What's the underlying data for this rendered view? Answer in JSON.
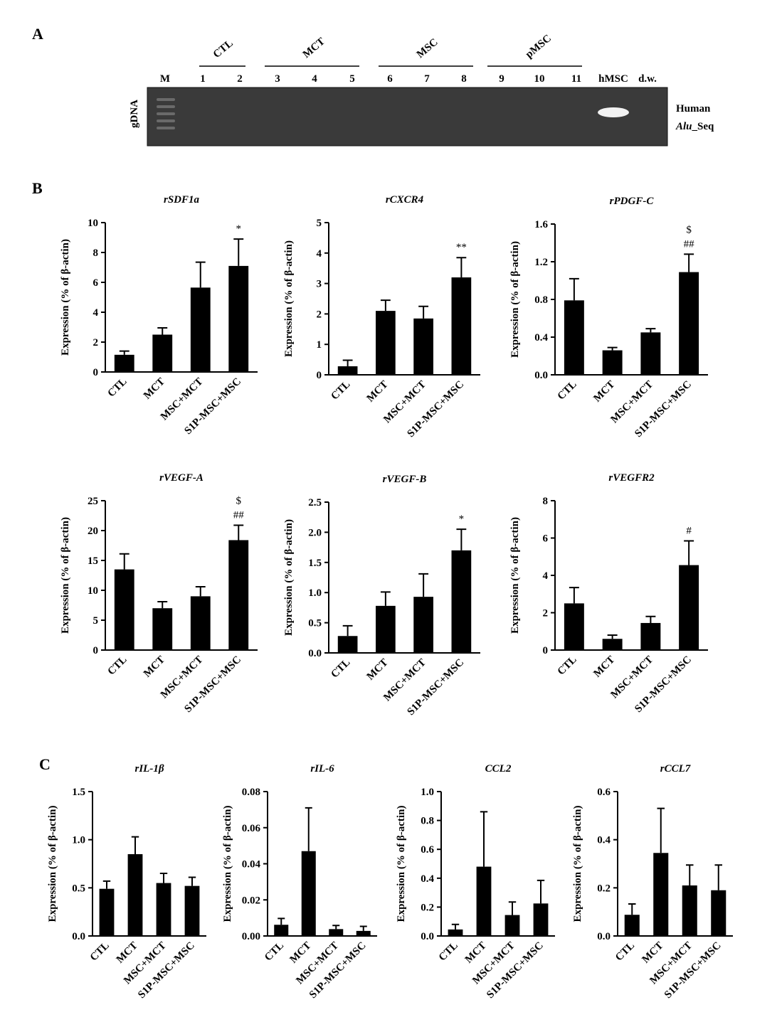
{
  "panel_labels": [
    "A",
    "B",
    "C"
  ],
  "gel": {
    "groups": [
      "CTL",
      "MCT",
      "MSC",
      "pMSC"
    ],
    "lanes": [
      "M",
      "1",
      "2",
      "3",
      "4",
      "5",
      "6",
      "7",
      "8",
      "9",
      "10",
      "11",
      "hMSC",
      "d.w."
    ],
    "row_label": "gDNA",
    "band_label": "Human",
    "band_sublabel_italic": "Alu",
    "band_sublabel_rest": "_Seq"
  },
  "chart_data": [
    {
      "type": "bar",
      "title": "rSDF1a",
      "ylabel": "Expression (% of β-actin)",
      "categories": [
        "CTL",
        "MCT",
        "MSC+MCT",
        "S1P-MSC+MSC"
      ],
      "values": [
        1.15,
        2.5,
        5.65,
        7.1
      ],
      "errors": [
        0.25,
        0.45,
        1.7,
        1.8
      ],
      "annotations": [
        null,
        null,
        null,
        [
          "*"
        ]
      ],
      "color": "#000000",
      "ylim": [
        0,
        10
      ],
      "yticks": [
        0,
        2,
        4,
        6,
        8,
        10
      ]
    },
    {
      "type": "bar",
      "title": "rCXCR4",
      "ylabel": "Expression (% of β-actin)",
      "categories": [
        "CTL",
        "MCT",
        "MSC+MCT",
        "S1P-MSC+MSC"
      ],
      "values": [
        0.28,
        2.1,
        1.85,
        3.2
      ],
      "errors": [
        0.2,
        0.35,
        0.4,
        0.65
      ],
      "annotations": [
        null,
        null,
        null,
        [
          "**"
        ]
      ],
      "color": "#000000",
      "ylim": [
        0,
        5
      ],
      "yticks": [
        0,
        1,
        2,
        3,
        4,
        5
      ]
    },
    {
      "type": "bar",
      "title": "rPDGF-C",
      "ylabel": "Expression (% of β-actin)",
      "categories": [
        "CTL",
        "MCT",
        "MSC+MCT",
        "S1P-MSC+MSC"
      ],
      "values": [
        0.79,
        0.26,
        0.45,
        1.09
      ],
      "errors": [
        0.23,
        0.03,
        0.04,
        0.19
      ],
      "annotations": [
        null,
        null,
        null,
        [
          "$",
          "##"
        ]
      ],
      "color": "#000000",
      "ylim": [
        0,
        1.6
      ],
      "yticks": [
        {
          "value": 0,
          "label": "0.0"
        },
        0.4,
        0.8,
        1.2,
        1.6
      ]
    },
    {
      "type": "bar",
      "title": "rVEGF-A",
      "ylabel": "Expression (% of β-actin)",
      "categories": [
        "CTL",
        "MCT",
        "MSC+MCT",
        "S1P-MSC+MSC"
      ],
      "values": [
        13.5,
        7.0,
        9.0,
        18.4
      ],
      "errors": [
        2.6,
        1.1,
        1.6,
        2.5
      ],
      "annotations": [
        null,
        null,
        null,
        [
          "$",
          "##"
        ]
      ],
      "color": "#000000",
      "ylim": [
        0,
        25
      ],
      "yticks": [
        0,
        5,
        10,
        15,
        20,
        25
      ]
    },
    {
      "type": "bar",
      "title": "rVEGF-B",
      "ylabel": "Expression (% of β-actin)",
      "categories": [
        "CTL",
        "MCT",
        "MSC+MCT",
        "S1P-MSC+MSC"
      ],
      "values": [
        0.28,
        0.78,
        0.93,
        1.7
      ],
      "errors": [
        0.17,
        0.23,
        0.38,
        0.35
      ],
      "annotations": [
        null,
        null,
        null,
        [
          "*"
        ]
      ],
      "color": "#000000",
      "ylim": [
        0,
        2.5
      ],
      "yticks": [
        {
          "value": 0,
          "label": "0.0"
        },
        0.5,
        {
          "value": 1,
          "label": "1.0"
        },
        1.5,
        {
          "value": 2,
          "label": "2.0"
        },
        2.5
      ]
    },
    {
      "type": "bar",
      "title": "rVEGFR2",
      "ylabel": "Expression (% of β-actin)",
      "categories": [
        "CTL",
        "MCT",
        "MSC+MCT",
        "S1P-MSC+MSC"
      ],
      "values": [
        2.5,
        0.6,
        1.45,
        4.55
      ],
      "errors": [
        0.85,
        0.2,
        0.35,
        1.3
      ],
      "annotations": [
        null,
        null,
        null,
        [
          "#"
        ]
      ],
      "color": "#000000",
      "ylim": [
        0,
        8
      ],
      "yticks": [
        0,
        2,
        4,
        6,
        8
      ]
    },
    {
      "type": "bar",
      "title": "rIL-1β",
      "ylabel": "Expression (% of β-actin)",
      "categories": [
        "CTL",
        "MCT",
        "MSC+MCT",
        "S1P-MSC+MSC"
      ],
      "values": [
        0.49,
        0.85,
        0.55,
        0.52
      ],
      "errors": [
        0.08,
        0.18,
        0.1,
        0.09
      ],
      "color": "#000000",
      "ylim": [
        0,
        1.5
      ],
      "yticks": [
        {
          "value": 0,
          "label": "0.0"
        },
        0.5,
        {
          "value": 1,
          "label": "1.0"
        },
        1.5
      ]
    },
    {
      "type": "bar",
      "title": "rIL-6",
      "ylabel": "Expression (% of β-actin)",
      "categories": [
        "CTL",
        "MCT",
        "MSC+MCT",
        "S1P-MSC+MSC"
      ],
      "values": [
        0.0062,
        0.047,
        0.0038,
        0.0028
      ],
      "errors": [
        0.0035,
        0.024,
        0.002,
        0.0025
      ],
      "color": "#000000",
      "ylim": [
        0,
        0.08
      ],
      "yticks": [
        {
          "value": 0,
          "label": "0.00"
        },
        0.02,
        0.04,
        0.06,
        0.08
      ]
    },
    {
      "type": "bar",
      "title": "CCL2",
      "ylabel": "Expression (% of β-actin)",
      "categories": [
        "CTL",
        "MCT",
        "MSC+MCT",
        "S1P-MSC+MSC"
      ],
      "values": [
        0.045,
        0.48,
        0.145,
        0.225
      ],
      "errors": [
        0.035,
        0.38,
        0.09,
        0.16
      ],
      "color": "#000000",
      "ylim": [
        0,
        1.0
      ],
      "yticks": [
        {
          "value": 0,
          "label": "0.0"
        },
        0.2,
        0.4,
        0.6,
        0.8,
        {
          "value": 1,
          "label": "1.0"
        }
      ]
    },
    {
      "type": "bar",
      "title": "rCCL7",
      "ylabel": "Expression (% of β-actin)",
      "categories": [
        "CTL",
        "MCT",
        "MSC+MCT",
        "S1P-MSC+MSC"
      ],
      "values": [
        0.088,
        0.345,
        0.21,
        0.19
      ],
      "errors": [
        0.045,
        0.185,
        0.085,
        0.105
      ],
      "color": "#000000",
      "ylim": [
        0,
        0.6
      ],
      "yticks": [
        {
          "value": 0,
          "label": "0.0"
        },
        0.2,
        0.4,
        0.6
      ]
    }
  ]
}
